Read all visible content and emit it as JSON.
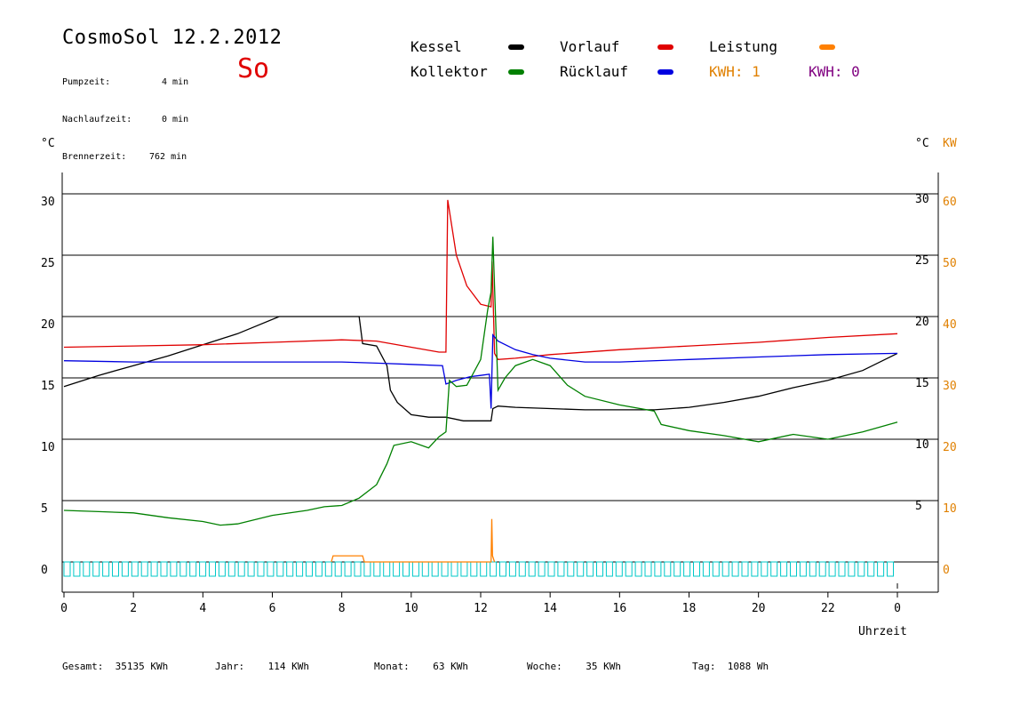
{
  "header": {
    "title": "CosmoSol 12.2.2012",
    "day": "So",
    "info": [
      {
        "label": "Pumpzeit:",
        "value": "4 min"
      },
      {
        "label": "Nachlaufzeit:",
        "value": "0 min"
      },
      {
        "label": "Brennerzeit:",
        "value": "762 min"
      }
    ]
  },
  "legend": {
    "items": [
      {
        "label": "Kessel",
        "color": "#000000"
      },
      {
        "label": "Vorlauf",
        "color": "#e00000"
      },
      {
        "label": "Leistung",
        "color": "#ff8000"
      },
      {
        "label": "Kollektor",
        "color": "#008000"
      },
      {
        "label": "Rücklauf",
        "color": "#0000e0"
      }
    ],
    "kwh_orange": "KWH: 1",
    "kwh_purple": "KWH: 0",
    "kwh_orange_color": "#e08000",
    "kwh_purple_color": "#800080"
  },
  "axes": {
    "left_unit": "°C",
    "right_unit": "°C",
    "right_unit2": "KW",
    "xlabel": "Uhrzeit"
  },
  "footer": {
    "gesamt_label": "Gesamt:",
    "gesamt_value": "35135 KWh",
    "jahr_label": "Jahr:",
    "jahr_value": "114 KWh",
    "monat_label": "Monat:",
    "monat_value": "63 KWh",
    "woche_label": "Woche:",
    "woche_value": "35 KWh",
    "tag_label": "Tag:",
    "tag_value": "1088 Wh"
  },
  "chart_data": {
    "type": "line",
    "x_ticks": [
      "0",
      "2",
      "4",
      "6",
      "8",
      "10",
      "12",
      "14",
      "16",
      "18",
      "20",
      "22",
      "0"
    ],
    "y_ticks_left": [
      "0",
      "5",
      "10",
      "15",
      "20",
      "25",
      "30"
    ],
    "y_ticks_right": [
      "5",
      "10",
      "15",
      "20",
      "25",
      "30"
    ],
    "y_ticks_kw": [
      "0",
      "10",
      "20",
      "30",
      "40",
      "50",
      "60"
    ],
    "xlim": [
      0,
      24
    ],
    "ylim": [
      0,
      30
    ],
    "grid": true,
    "series": [
      {
        "name": "Kessel",
        "color": "#000000",
        "x": [
          0,
          1,
          2,
          3,
          4,
          5,
          6.2,
          8.5,
          8.6,
          9.0,
          9.3,
          9.4,
          9.6,
          10.0,
          10.5,
          11.0,
          11.5,
          12.0,
          12.3,
          12.35,
          12.5,
          13.0,
          14.0,
          15.0,
          16.0,
          17.0,
          18.0,
          19.0,
          20.0,
          21.0,
          22.0,
          23.0,
          24.0
        ],
        "y": [
          14.3,
          15.2,
          16.0,
          16.8,
          17.7,
          18.6,
          20.0,
          20.0,
          17.8,
          17.6,
          16.0,
          14.0,
          13.0,
          12.0,
          11.8,
          11.8,
          11.5,
          11.5,
          11.5,
          12.5,
          12.7,
          12.6,
          12.5,
          12.4,
          12.4,
          12.4,
          12.6,
          13.0,
          13.5,
          14.2,
          14.8,
          15.6,
          17.0
        ]
      },
      {
        "name": "Vorlauf",
        "color": "#e00000",
        "x": [
          0,
          2,
          4,
          6,
          8,
          9,
          10,
          10.8,
          11.0,
          11.05,
          11.3,
          11.6,
          12.0,
          12.3,
          12.33,
          12.4,
          12.5,
          13,
          14,
          16,
          18,
          20,
          22,
          24
        ],
        "y": [
          17.5,
          17.6,
          17.7,
          17.9,
          18.1,
          18.0,
          17.5,
          17.1,
          17.1,
          29.5,
          25.0,
          22.5,
          21.0,
          20.8,
          24.5,
          17.0,
          16.5,
          16.6,
          16.9,
          17.3,
          17.6,
          17.9,
          18.3,
          18.6
        ]
      },
      {
        "name": "Rücklauf",
        "color": "#0000e0",
        "x": [
          0,
          2,
          4,
          6,
          8,
          9,
          10,
          10.9,
          11.0,
          11.3,
          11.7,
          12.0,
          12.25,
          12.3,
          12.35,
          12.5,
          13.0,
          13.5,
          14.0,
          15.0,
          16.0,
          18,
          20,
          22,
          24
        ],
        "y": [
          16.4,
          16.3,
          16.3,
          16.3,
          16.3,
          16.2,
          16.1,
          16.0,
          14.5,
          14.8,
          15.1,
          15.2,
          15.3,
          12.5,
          18.5,
          18.0,
          17.3,
          16.9,
          16.6,
          16.3,
          16.3,
          16.5,
          16.7,
          16.9,
          17.0
        ]
      },
      {
        "name": "Kollektor",
        "color": "#008000",
        "x": [
          0,
          1,
          2,
          3,
          4,
          4.5,
          5,
          6,
          7,
          7.5,
          8,
          8.5,
          9,
          9.3,
          9.5,
          10,
          10.5,
          10.8,
          11,
          11.1,
          11.3,
          11.6,
          12,
          12.2,
          12.3,
          12.35,
          12.5,
          12.7,
          13,
          13.5,
          14,
          14.5,
          15,
          16,
          17,
          17.2,
          18,
          19,
          20,
          21,
          22,
          23,
          24
        ],
        "y": [
          4.2,
          4.1,
          4.0,
          3.6,
          3.3,
          3.0,
          3.1,
          3.8,
          4.2,
          4.5,
          4.6,
          5.2,
          6.3,
          8.0,
          9.5,
          9.8,
          9.3,
          10.2,
          10.6,
          14.8,
          14.3,
          14.4,
          16.5,
          20.5,
          22.0,
          26.5,
          14.0,
          15.0,
          16.0,
          16.5,
          16.0,
          14.4,
          13.5,
          12.8,
          12.3,
          11.2,
          10.7,
          10.3,
          9.8,
          10.4,
          10.0,
          10.6,
          11.4
        ]
      },
      {
        "name": "Leistung",
        "color": "#ff8000",
        "x": [
          7.7,
          7.75,
          8.6,
          8.65,
          12.3,
          12.32,
          12.34,
          12.4
        ],
        "y": [
          0,
          0.5,
          0.5,
          0,
          0,
          3.5,
          0.5,
          0
        ]
      }
    ]
  }
}
